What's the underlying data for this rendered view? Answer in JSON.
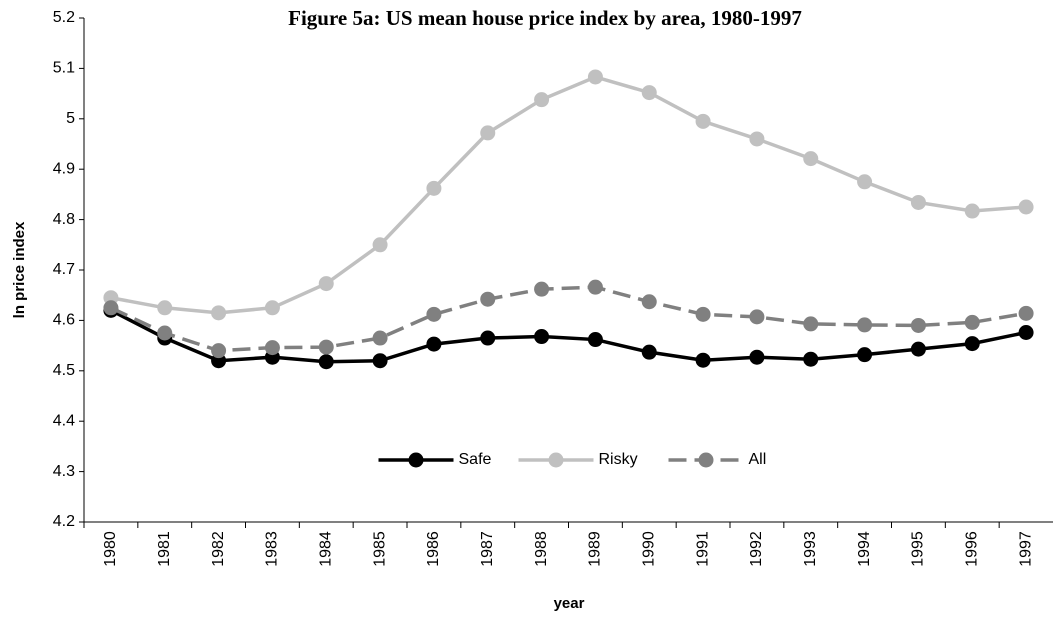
{
  "chart_data": {
    "type": "line",
    "title": "Figure 5a: US mean house price index by area, 1980-1997",
    "x_label": "year",
    "y_label": "ln price index",
    "categories": [
      "1980",
      "1981",
      "1982",
      "1983",
      "1984",
      "1985",
      "1986",
      "1987",
      "1988",
      "1989",
      "1990",
      "1991",
      "1992",
      "1993",
      "1994",
      "1995",
      "1996",
      "1997"
    ],
    "series": [
      {
        "name": "Safe",
        "color": "#000000",
        "dashed": false,
        "values": [
          4.62,
          4.565,
          4.52,
          4.527,
          4.518,
          4.52,
          4.553,
          4.565,
          4.568,
          4.562,
          4.537,
          4.521,
          4.527,
          4.523,
          4.532,
          4.543,
          4.554,
          4.576
        ]
      },
      {
        "name": "Risky",
        "color": "#c0c0c0",
        "dashed": false,
        "values": [
          4.645,
          4.625,
          4.615,
          4.625,
          4.673,
          4.75,
          4.862,
          4.972,
          5.038,
          5.083,
          5.052,
          4.995,
          4.96,
          4.921,
          4.875,
          4.834,
          4.817,
          4.825
        ]
      },
      {
        "name": "All",
        "color": "#808080",
        "dashed": true,
        "values": [
          4.625,
          4.575,
          4.54,
          4.546,
          4.547,
          4.565,
          4.612,
          4.642,
          4.662,
          4.666,
          4.637,
          4.612,
          4.607,
          4.593,
          4.591,
          4.59,
          4.596,
          4.614
        ]
      }
    ],
    "ylim": [
      4.2,
      5.2
    ],
    "yticks": [
      4.2,
      4.3,
      4.4,
      4.5,
      4.6,
      4.7,
      4.8,
      4.9,
      5,
      5.1,
      5.2
    ],
    "grid": false,
    "legend": "bottom"
  }
}
